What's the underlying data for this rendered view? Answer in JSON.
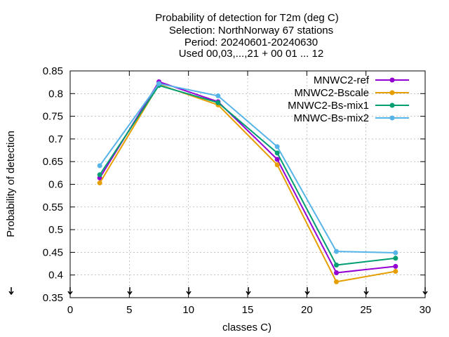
{
  "chart_data": {
    "type": "line",
    "title_lines": [
      "Probability of detection  for T2m (deg C)",
      "Selection: NorthNorway     67 stations",
      "Period: 20240601-20240630",
      "Used 00,03,...,21 + 00 01 ... 12"
    ],
    "xlabel": "classes C)",
    "ylabel": "Probability of detection",
    "xlim": [
      0,
      30
    ],
    "ylim": [
      0.35,
      0.85
    ],
    "xticks": [
      0,
      5,
      10,
      15,
      20,
      25,
      30
    ],
    "xtick_labels": [
      "0",
      "5",
      "10",
      "15",
      "20",
      "25",
      "30"
    ],
    "yticks": [
      0.35,
      0.4,
      0.45,
      0.5,
      0.55,
      0.6,
      0.65,
      0.7,
      0.75,
      0.8,
      0.85
    ],
    "ytick_labels": [
      "0.35",
      "0.4",
      "0.45",
      "0.5",
      "0.55",
      "0.6",
      "0.65",
      "0.7",
      "0.75",
      "0.8",
      "0.85"
    ],
    "grid": true,
    "legend_position": "top-right",
    "x": [
      2.5,
      7.5,
      12.5,
      17.5,
      22.5,
      27.5
    ],
    "series": [
      {
        "name": "MNWC2-ref",
        "color": "#9400d3",
        "values": [
          0.614,
          0.826,
          0.782,
          0.655,
          0.405,
          0.419
        ]
      },
      {
        "name": "MNWC2-Bscale",
        "color": "#e69f00",
        "values": [
          0.603,
          0.82,
          0.775,
          0.643,
          0.385,
          0.408
        ]
      },
      {
        "name": "MNWC2-Bs-mix1",
        "color": "#009e73",
        "values": [
          0.621,
          0.818,
          0.78,
          0.669,
          0.422,
          0.437
        ]
      },
      {
        "name": "MNWC-Bs-mix2",
        "color": "#56b4e9",
        "values": [
          0.641,
          0.822,
          0.795,
          0.683,
          0.452,
          0.449
        ]
      }
    ]
  }
}
